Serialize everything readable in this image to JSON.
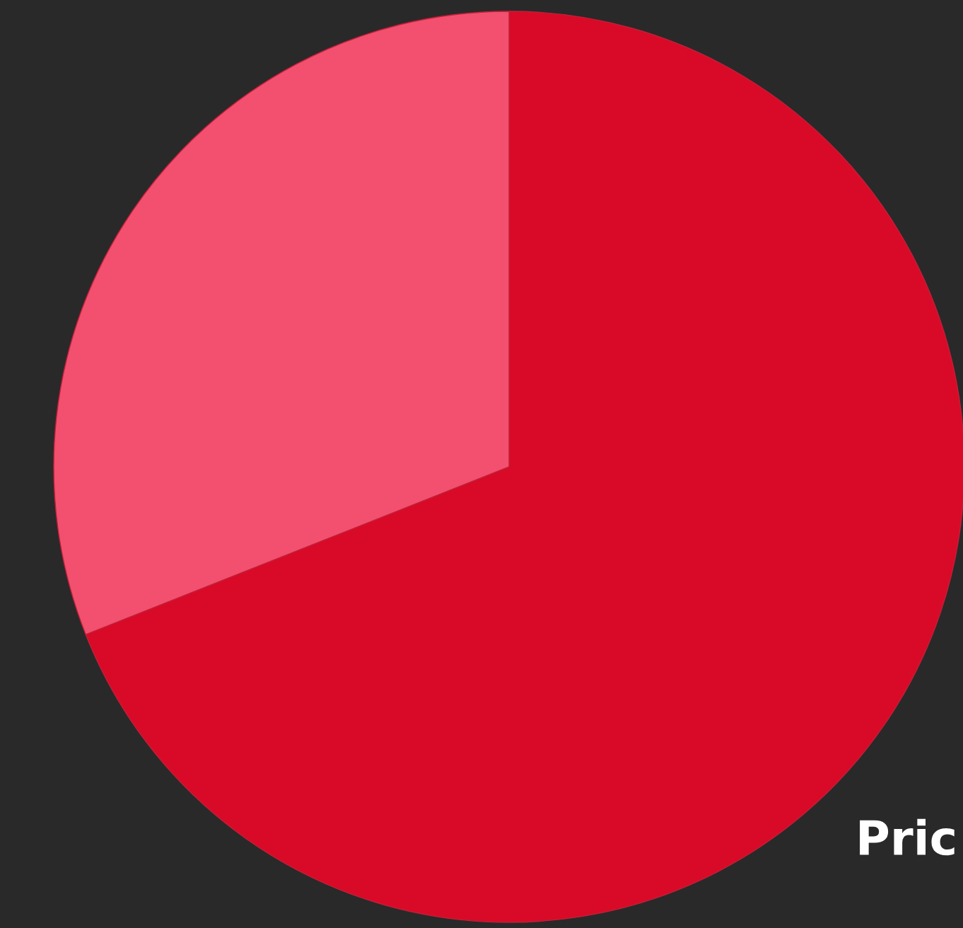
{
  "chart_data": {
    "type": "pie",
    "categories": [
      null,
      null
    ],
    "values": [
      69,
      31
    ],
    "colors": [
      "#d90a27",
      "#f2506e"
    ],
    "annotations": [
      "Pric"
    ]
  }
}
